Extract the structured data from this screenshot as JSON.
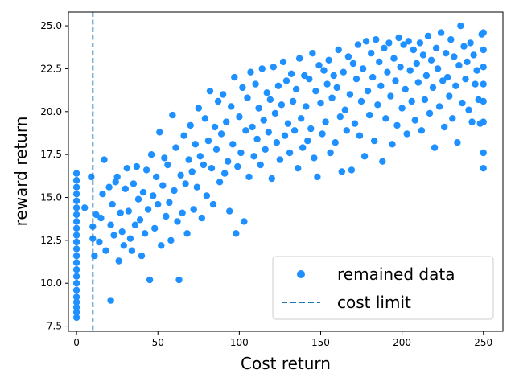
{
  "chart_data": {
    "type": "scatter",
    "title": "",
    "xlabel": "Cost return",
    "ylabel": "reward return",
    "xlim": [
      -5,
      262
    ],
    "ylim": [
      7.2,
      25.8
    ],
    "xticks": [
      0,
      50,
      100,
      150,
      200,
      250
    ],
    "yticks": [
      7.5,
      10.0,
      12.5,
      15.0,
      17.5,
      20.0,
      22.5,
      25.0
    ],
    "xtick_labels": [
      "0",
      "50",
      "100",
      "150",
      "200",
      "250"
    ],
    "ytick_labels": [
      "7.5",
      "10.0",
      "12.5",
      "15.0",
      "17.5",
      "20.0",
      "22.5",
      "25.0"
    ],
    "grid": false,
    "legend": {
      "location": "lower-right",
      "entries": [
        {
          "label": "remained data",
          "kind": "marker"
        },
        {
          "label": "cost limit",
          "kind": "dashed-line"
        }
      ]
    },
    "colors": {
      "points": "#1e90ff",
      "limit_line": "#1f77b4"
    },
    "cost_limit": 10,
    "series": [
      {
        "name": "remained data",
        "points": [
          [
            0,
            8.0
          ],
          [
            0,
            8.3
          ],
          [
            0,
            8.6
          ],
          [
            0,
            8.9
          ],
          [
            0,
            9.2
          ],
          [
            0,
            9.6
          ],
          [
            0,
            10.0
          ],
          [
            0,
            10.4
          ],
          [
            0,
            10.8
          ],
          [
            0,
            11.2
          ],
          [
            0,
            11.6
          ],
          [
            0,
            12.0
          ],
          [
            0,
            12.4
          ],
          [
            0,
            12.8
          ],
          [
            0,
            13.2
          ],
          [
            0,
            13.6
          ],
          [
            0,
            14.0
          ],
          [
            0,
            14.4
          ],
          [
            0,
            14.8
          ],
          [
            0,
            15.2
          ],
          [
            0,
            15.6
          ],
          [
            0,
            16.0
          ],
          [
            0,
            16.4
          ],
          [
            5,
            14.4
          ],
          [
            9,
            16.2
          ],
          [
            10,
            12.6
          ],
          [
            10,
            13.3
          ],
          [
            11,
            11.6
          ],
          [
            12,
            14.0
          ],
          [
            14,
            12.4
          ],
          [
            15,
            13.8
          ],
          [
            16,
            15.2
          ],
          [
            17,
            17.2
          ],
          [
            18,
            11.9
          ],
          [
            20,
            15.6
          ],
          [
            21,
            13.4
          ],
          [
            21,
            9.0
          ],
          [
            22,
            14.6
          ],
          [
            23,
            12.8
          ],
          [
            24,
            15.9
          ],
          [
            25,
            16.2
          ],
          [
            26,
            11.3
          ],
          [
            27,
            14.1
          ],
          [
            28,
            13.0
          ],
          [
            29,
            12.2
          ],
          [
            30,
            15.5
          ],
          [
            31,
            16.7
          ],
          [
            32,
            14.2
          ],
          [
            33,
            12.6
          ],
          [
            34,
            11.9
          ],
          [
            35,
            15.8
          ],
          [
            36,
            13.4
          ],
          [
            37,
            16.8
          ],
          [
            38,
            14.9
          ],
          [
            39,
            13.7
          ],
          [
            40,
            11.6
          ],
          [
            41,
            15.3
          ],
          [
            42,
            12.9
          ],
          [
            43,
            16.6
          ],
          [
            44,
            14.3
          ],
          [
            45,
            10.2
          ],
          [
            46,
            17.5
          ],
          [
            47,
            15.1
          ],
          [
            48,
            13.2
          ],
          [
            49,
            16.2
          ],
          [
            50,
            14.6
          ],
          [
            51,
            18.8
          ],
          [
            52,
            12.2
          ],
          [
            53,
            15.7
          ],
          [
            54,
            17.3
          ],
          [
            55,
            13.9
          ],
          [
            56,
            16.9
          ],
          [
            57,
            14.7
          ],
          [
            58,
            12.5
          ],
          [
            59,
            19.8
          ],
          [
            60,
            15.4
          ],
          [
            61,
            17.9
          ],
          [
            62,
            13.6
          ],
          [
            63,
            10.2
          ],
          [
            64,
            16.3
          ],
          [
            65,
            14.1
          ],
          [
            66,
            18.6
          ],
          [
            67,
            15.8
          ],
          [
            68,
            12.9
          ],
          [
            69,
            17.2
          ],
          [
            70,
            19.2
          ],
          [
            71,
            16.5
          ],
          [
            72,
            14.3
          ],
          [
            73,
            18.1
          ],
          [
            74,
            15.6
          ],
          [
            75,
            20.2
          ],
          [
            76,
            17.4
          ],
          [
            77,
            13.8
          ],
          [
            78,
            16.9
          ],
          [
            79,
            19.6
          ],
          [
            80,
            15.1
          ],
          [
            81,
            18.3
          ],
          [
            82,
            21.2
          ],
          [
            83,
            16.7
          ],
          [
            84,
            14.6
          ],
          [
            85,
            19.1
          ],
          [
            86,
            17.8
          ],
          [
            87,
            20.6
          ],
          [
            88,
            15.9
          ],
          [
            89,
            18.7
          ],
          [
            90,
            21.0
          ],
          [
            91,
            16.4
          ],
          [
            92,
            19.4
          ],
          [
            93,
            17.1
          ],
          [
            94,
            14.2
          ],
          [
            95,
            20.3
          ],
          [
            96,
            18.1
          ],
          [
            97,
            22.0
          ],
          [
            98,
            12.9
          ],
          [
            99,
            16.8
          ],
          [
            100,
            19.7
          ],
          [
            101,
            17.6
          ],
          [
            102,
            21.4
          ],
          [
            103,
            13.6
          ],
          [
            104,
            18.9
          ],
          [
            105,
            20.8
          ],
          [
            106,
            16.2
          ],
          [
            107,
            22.3
          ],
          [
            108,
            19.1
          ],
          [
            109,
            17.4
          ],
          [
            110,
            21.6
          ],
          [
            111,
            18.4
          ],
          [
            112,
            20.2
          ],
          [
            113,
            16.9
          ],
          [
            114,
            22.5
          ],
          [
            115,
            19.5
          ],
          [
            116,
            17.8
          ],
          [
            117,
            21.1
          ],
          [
            118,
            18.8
          ],
          [
            119,
            20.7
          ],
          [
            120,
            16.1
          ],
          [
            121,
            22.6
          ],
          [
            122,
            19.9
          ],
          [
            123,
            18.2
          ],
          [
            124,
            21.5
          ],
          [
            125,
            17.2
          ],
          [
            126,
            20.4
          ],
          [
            127,
            22.9
          ],
          [
            128,
            18.6
          ],
          [
            129,
            21.8
          ],
          [
            130,
            19.3
          ],
          [
            131,
            17.6
          ],
          [
            132,
            22.2
          ],
          [
            133,
            20.6
          ],
          [
            134,
            18.9
          ],
          [
            135,
            21.3
          ],
          [
            136,
            16.7
          ],
          [
            137,
            23.1
          ],
          [
            138,
            19.6
          ],
          [
            139,
            17.9
          ],
          [
            140,
            22.1
          ],
          [
            141,
            20.3
          ],
          [
            142,
            18.3
          ],
          [
            143,
            21.9
          ],
          [
            144,
            19.0
          ],
          [
            145,
            23.4
          ],
          [
            146,
            17.3
          ],
          [
            147,
            21.2
          ],
          [
            148,
            16.2
          ],
          [
            149,
            22.7
          ],
          [
            150,
            20.5
          ],
          [
            151,
            18.7
          ],
          [
            152,
            22.4
          ],
          [
            153,
            19.4
          ],
          [
            154,
            21.6
          ],
          [
            155,
            23.0
          ],
          [
            156,
            17.6
          ],
          [
            157,
            20.8
          ],
          [
            158,
            22.1
          ],
          [
            159,
            18.2
          ],
          [
            160,
            21.4
          ],
          [
            161,
            23.6
          ],
          [
            162,
            19.7
          ],
          [
            163,
            16.5
          ],
          [
            164,
            22.3
          ],
          [
            165,
            20.1
          ],
          [
            166,
            18.9
          ],
          [
            167,
            23.2
          ],
          [
            168,
            21.0
          ],
          [
            169,
            16.6
          ],
          [
            170,
            22.8
          ],
          [
            171,
            19.3
          ],
          [
            172,
            21.9
          ],
          [
            173,
            23.9
          ],
          [
            174,
            18.6
          ],
          [
            175,
            20.6
          ],
          [
            176,
            22.5
          ],
          [
            177,
            17.4
          ],
          [
            178,
            24.1
          ],
          [
            179,
            21.2
          ],
          [
            180,
            19.8
          ],
          [
            181,
            23.4
          ],
          [
            182,
            22.0
          ],
          [
            183,
            18.3
          ],
          [
            184,
            24.2
          ],
          [
            185,
            20.4
          ],
          [
            186,
            22.9
          ],
          [
            187,
            21.5
          ],
          [
            188,
            17.1
          ],
          [
            189,
            23.7
          ],
          [
            190,
            19.6
          ],
          [
            191,
            22.3
          ],
          [
            192,
            24.0
          ],
          [
            193,
            20.9
          ],
          [
            194,
            18.1
          ],
          [
            195,
            23.1
          ],
          [
            196,
            21.8
          ],
          [
            197,
            19.2
          ],
          [
            198,
            24.3
          ],
          [
            199,
            22.6
          ],
          [
            200,
            20.2
          ],
          [
            201,
            23.9
          ],
          [
            202,
            21.3
          ],
          [
            203,
            18.7
          ],
          [
            204,
            24.1
          ],
          [
            205,
            22.4
          ],
          [
            206,
            20.6
          ],
          [
            207,
            23.6
          ],
          [
            208,
            19.5
          ],
          [
            209,
            22.8
          ],
          [
            210,
            21.7
          ],
          [
            211,
            24.0
          ],
          [
            212,
            18.9
          ],
          [
            213,
            23.3
          ],
          [
            214,
            20.7
          ],
          [
            215,
            22.1
          ],
          [
            216,
            24.4
          ],
          [
            217,
            19.9
          ],
          [
            218,
            23.0
          ],
          [
            219,
            21.4
          ],
          [
            220,
            17.9
          ],
          [
            221,
            23.7
          ],
          [
            222,
            22.5
          ],
          [
            223,
            20.3
          ],
          [
            224,
            24.6
          ],
          [
            225,
            21.8
          ],
          [
            226,
            19.1
          ],
          [
            227,
            23.4
          ],
          [
            228,
            22.0
          ],
          [
            229,
            20.9
          ],
          [
            230,
            24.2
          ],
          [
            231,
            19.6
          ],
          [
            232,
            23.2
          ],
          [
            233,
            21.5
          ],
          [
            234,
            18.2
          ],
          [
            235,
            22.7
          ],
          [
            236,
            25.0
          ],
          [
            237,
            20.5
          ],
          [
            238,
            23.8
          ],
          [
            239,
            21.9
          ],
          [
            240,
            22.9
          ],
          [
            241,
            20.1
          ],
          [
            242,
            24.0
          ],
          [
            243,
            19.4
          ],
          [
            244,
            23.3
          ],
          [
            245,
            21.6
          ],
          [
            246,
            22.4
          ],
          [
            247,
            20.7
          ],
          [
            248,
            19.3
          ],
          [
            249,
            24.5
          ],
          [
            250,
            24.6
          ],
          [
            250,
            23.6
          ],
          [
            250,
            22.6
          ],
          [
            250,
            21.6
          ],
          [
            250,
            20.6
          ],
          [
            250,
            19.4
          ],
          [
            250,
            17.6
          ],
          [
            250,
            16.7
          ]
        ]
      }
    ]
  }
}
